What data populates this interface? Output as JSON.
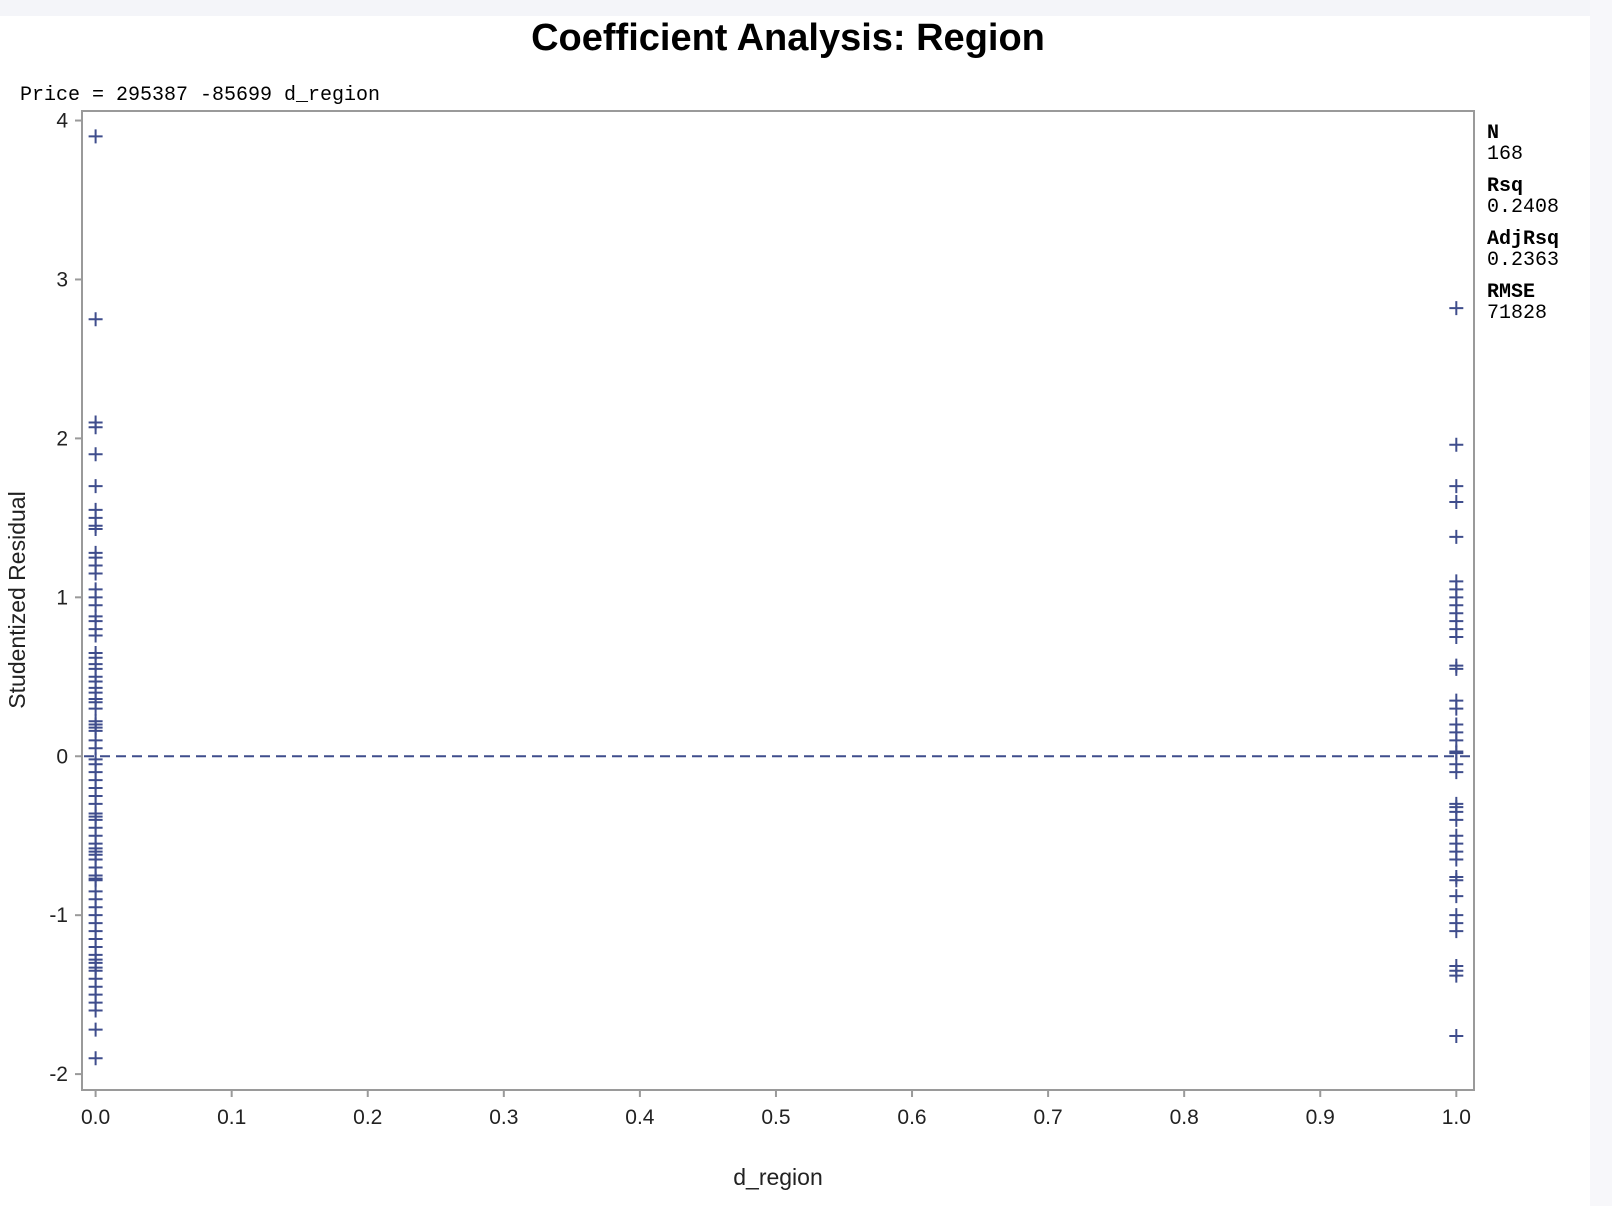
{
  "chart_data": {
    "type": "scatter",
    "title": "Coefficient Analysis: Region",
    "equation": "Price = 295387 -85699 d_region",
    "xlabel": "d_region",
    "ylabel": "Studentized Residual",
    "xlim": [
      -0.01,
      1.013
    ],
    "ylim": [
      -2.1,
      4.06
    ],
    "x_ticks": [
      0.0,
      0.1,
      0.2,
      0.3,
      0.4,
      0.5,
      0.6,
      0.7,
      0.8,
      0.9,
      1.0
    ],
    "x_tick_labels": [
      "0.0",
      "0.1",
      "0.2",
      "0.3",
      "0.4",
      "0.5",
      "0.6",
      "0.7",
      "0.8",
      "0.9",
      "1.0"
    ],
    "y_ticks": [
      -2,
      -1,
      0,
      1,
      2,
      3,
      4
    ],
    "y_tick_labels": [
      "-2",
      "-1",
      "0",
      "1",
      "2",
      "3",
      "4"
    ],
    "reference_line": {
      "y": 0,
      "style": "dashed"
    },
    "marker": "plus",
    "marker_color": "#3f4d8c",
    "stats": [
      {
        "label": "N",
        "value": "168"
      },
      {
        "label": "Rsq",
        "value": "0.2408"
      },
      {
        "label": "AdjRsq",
        "value": "0.2363"
      },
      {
        "label": "RMSE",
        "value": "71828"
      }
    ],
    "series": [
      {
        "x": 0,
        "y": [
          3.9,
          2.75,
          2.1,
          2.07,
          1.9,
          1.7,
          1.55,
          1.5,
          1.45,
          1.43,
          1.28,
          1.25,
          1.2,
          1.15,
          1.05,
          1.0,
          0.95,
          0.88,
          0.85,
          0.8,
          0.76,
          0.65,
          0.62,
          0.58,
          0.55,
          0.5,
          0.47,
          0.43,
          0.4,
          0.36,
          0.34,
          0.3,
          0.22,
          0.2,
          0.18,
          0.16,
          0.1,
          0.05,
          -0.02,
          -0.05,
          -0.1,
          -0.15,
          -0.2,
          -0.25,
          -0.3,
          -0.36,
          -0.38,
          -0.4,
          -0.45,
          -0.5,
          -0.55,
          -0.58,
          -0.6,
          -0.62,
          -0.65,
          -0.7,
          -0.75,
          -0.77,
          -0.78,
          -0.85,
          -0.9,
          -0.95,
          -1.0,
          -1.05,
          -1.1,
          -1.15,
          -1.2,
          -1.25,
          -1.28,
          -1.3,
          -1.33,
          -1.35,
          -1.4,
          -1.45,
          -1.5,
          -1.55,
          -1.6,
          -1.72,
          -1.9
        ]
      },
      {
        "x": 1,
        "y": [
          2.82,
          1.96,
          1.7,
          1.6,
          1.38,
          1.1,
          1.05,
          1.0,
          0.95,
          0.9,
          0.85,
          0.8,
          0.75,
          0.57,
          0.55,
          0.35,
          0.3,
          0.2,
          0.15,
          0.1,
          0.03,
          0.02,
          -0.05,
          -0.1,
          -0.3,
          -0.32,
          -0.35,
          -0.4,
          -0.5,
          -0.55,
          -0.6,
          -0.65,
          -0.76,
          -0.78,
          -0.88,
          -1.0,
          -1.05,
          -1.1,
          -1.32,
          -1.35,
          -1.38,
          -1.76
        ]
      }
    ]
  }
}
